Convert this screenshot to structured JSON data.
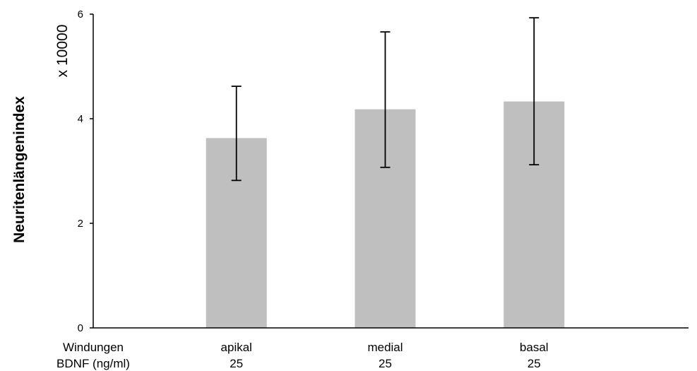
{
  "chart_data": {
    "type": "bar",
    "ylabel": "Neuritenlängenindex",
    "y_multiplier_label": "x 10000",
    "ylim": [
      0,
      6
    ],
    "yticks": [
      "0",
      "2",
      "4",
      "6"
    ],
    "row_labels": [
      "Windungen",
      "BDNF (ng/ml)"
    ],
    "categories": [
      "apikal",
      "medial",
      "basal"
    ],
    "bdnf": [
      "25",
      "25",
      "25"
    ],
    "values": [
      3.63,
      4.18,
      4.33
    ],
    "error_low": [
      2.82,
      3.07,
      3.12
    ],
    "error_high": [
      4.62,
      5.66,
      5.93
    ],
    "bar_color": "#bfbfbf",
    "grid": false,
    "legend": "none"
  }
}
